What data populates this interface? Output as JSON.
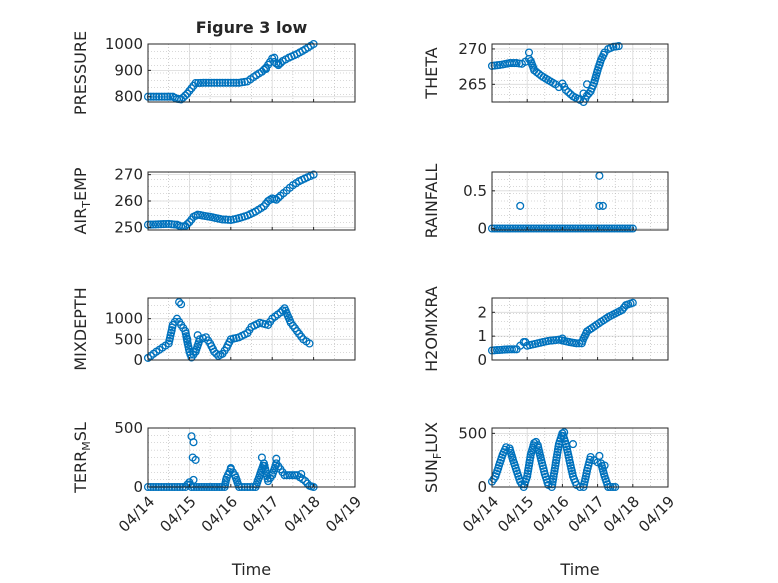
{
  "figure_title": "Figure 3 low",
  "colors": {
    "marker": "#0072BD",
    "axis": "#262626",
    "grid": "#b0b0b0"
  },
  "chart_data": [
    {
      "id": "pressure",
      "type": "scatter",
      "title": "Figure 3 low",
      "ylabel_main": "PRESSURE",
      "ylabel_sub": "",
      "ylabel_tail": "",
      "xlim": [
        0,
        5
      ],
      "ylim": [
        780,
        1000
      ],
      "yticks": [
        800,
        900,
        1000
      ],
      "ytick_labels": [
        "800",
        "900",
        "1000"
      ],
      "xtick_labels": [],
      "trace": [
        [
          0,
          800
        ],
        [
          0.4,
          800
        ],
        [
          0.6,
          800
        ],
        [
          0.7,
          792
        ],
        [
          0.8,
          790
        ],
        [
          0.85,
          797
        ],
        [
          0.95,
          812
        ],
        [
          1.05,
          832
        ],
        [
          1.15,
          852
        ],
        [
          1.4,
          853
        ],
        [
          1.8,
          853
        ],
        [
          2.2,
          853
        ],
        [
          2.4,
          858
        ],
        [
          2.55,
          875
        ],
        [
          2.75,
          895
        ],
        [
          2.85,
          910
        ],
        [
          2.95,
          932
        ],
        [
          3.0,
          945
        ],
        [
          3.05,
          932
        ],
        [
          3.15,
          920
        ],
        [
          3.25,
          935
        ],
        [
          3.4,
          948
        ],
        [
          3.6,
          962
        ],
        [
          3.8,
          980
        ],
        [
          4.0,
          1000
        ]
      ],
      "extra": [
        [
          2.85,
          905
        ],
        [
          3.05,
          948
        ],
        [
          3.15,
          925
        ]
      ]
    },
    {
      "id": "theta",
      "type": "scatter",
      "title": "",
      "ylabel_main": "THETA",
      "ylabel_sub": "",
      "ylabel_tail": "",
      "xlim": [
        0,
        5
      ],
      "ylim": [
        262.5,
        270.7
      ],
      "yticks": [
        265,
        270
      ],
      "ytick_labels": [
        "265",
        "270"
      ],
      "xtick_labels": [],
      "trace": [
        [
          0,
          267.6
        ],
        [
          0.3,
          267.8
        ],
        [
          0.5,
          268.0
        ],
        [
          0.7,
          268.0
        ],
        [
          0.85,
          267.9
        ],
        [
          0.95,
          268.2
        ],
        [
          1.05,
          268.6
        ],
        [
          1.1,
          268.3
        ],
        [
          1.2,
          267.0
        ],
        [
          1.4,
          266.2
        ],
        [
          1.6,
          265.6
        ],
        [
          1.8,
          265.0
        ],
        [
          1.9,
          264.6
        ],
        [
          2.0,
          265.1
        ],
        [
          2.1,
          264.2
        ],
        [
          2.3,
          263.3
        ],
        [
          2.5,
          262.8
        ],
        [
          2.6,
          262.5
        ],
        [
          2.7,
          263.4
        ],
        [
          2.8,
          264.0
        ],
        [
          2.9,
          265.2
        ],
        [
          3.0,
          267.0
        ],
        [
          3.1,
          268.5
        ],
        [
          3.2,
          269.5
        ],
        [
          3.3,
          270.0
        ],
        [
          3.45,
          270.3
        ],
        [
          3.6,
          270.4
        ]
      ],
      "extra": [
        [
          1.05,
          269.5
        ],
        [
          2.7,
          265.0
        ],
        [
          2.6,
          263.7
        ]
      ]
    },
    {
      "id": "air_temp",
      "type": "scatter",
      "title": "",
      "ylabel_main": "AIR",
      "ylabel_sub": "T",
      "ylabel_tail": "EMP",
      "xlim": [
        0,
        5
      ],
      "ylim": [
        249,
        271
      ],
      "yticks": [
        250,
        260,
        270
      ],
      "ytick_labels": [
        "250",
        "260",
        "270"
      ],
      "xtick_labels": [],
      "trace": [
        [
          0,
          251.0
        ],
        [
          0.5,
          251.3
        ],
        [
          0.7,
          251.0
        ],
        [
          0.8,
          250.3
        ],
        [
          0.9,
          250.5
        ],
        [
          1.0,
          252.0
        ],
        [
          1.1,
          254.0
        ],
        [
          1.2,
          254.8
        ],
        [
          1.5,
          254.0
        ],
        [
          1.8,
          253.0
        ],
        [
          2.0,
          252.8
        ],
        [
          2.2,
          253.5
        ],
        [
          2.4,
          254.5
        ],
        [
          2.6,
          256.0
        ],
        [
          2.8,
          258.0
        ],
        [
          2.9,
          260.0
        ],
        [
          3.0,
          261.0
        ],
        [
          3.1,
          260.5
        ],
        [
          3.2,
          262.0
        ],
        [
          3.35,
          264.0
        ],
        [
          3.5,
          266.0
        ],
        [
          3.65,
          267.5
        ],
        [
          3.85,
          269.0
        ],
        [
          4.0,
          270.0
        ]
      ],
      "extra": []
    },
    {
      "id": "rainfall",
      "type": "scatter",
      "title": "",
      "ylabel_main": "RAINFALL",
      "ylabel_sub": "",
      "ylabel_tail": "",
      "xlim": [
        0,
        5
      ],
      "ylim": [
        -0.02,
        0.75
      ],
      "yticks": [
        0,
        0.5
      ],
      "ytick_labels": [
        "0",
        "0.5"
      ],
      "xtick_labels": [],
      "trace": [
        [
          0,
          0
        ],
        [
          4.0,
          0
        ]
      ],
      "extra": [
        [
          0.8,
          0.3
        ],
        [
          3.05,
          0.7
        ],
        [
          3.05,
          0.3
        ],
        [
          3.15,
          0.3
        ]
      ]
    },
    {
      "id": "mixdepth",
      "type": "scatter",
      "title": "",
      "ylabel_main": "MIXDEPTH",
      "ylabel_sub": "",
      "ylabel_tail": "",
      "xlim": [
        0,
        5
      ],
      "ylim": [
        0,
        1500
      ],
      "yticks": [
        0,
        500,
        1000
      ],
      "ytick_labels": [
        "0",
        "500",
        "1000"
      ],
      "xtick_labels": [],
      "trace": [
        [
          0,
          50
        ],
        [
          0.2,
          200
        ],
        [
          0.35,
          300
        ],
        [
          0.5,
          400
        ],
        [
          0.6,
          850
        ],
        [
          0.7,
          1000
        ],
        [
          0.8,
          850
        ],
        [
          0.9,
          700
        ],
        [
          1.0,
          200
        ],
        [
          1.05,
          60
        ],
        [
          1.15,
          200
        ],
        [
          1.25,
          500
        ],
        [
          1.4,
          550
        ],
        [
          1.5,
          400
        ],
        [
          1.6,
          200
        ],
        [
          1.7,
          100
        ],
        [
          1.8,
          150
        ],
        [
          1.9,
          300
        ],
        [
          2.0,
          500
        ],
        [
          2.2,
          550
        ],
        [
          2.4,
          650
        ],
        [
          2.5,
          800
        ],
        [
          2.7,
          900
        ],
        [
          2.9,
          850
        ],
        [
          3.0,
          1000
        ],
        [
          3.2,
          1150
        ],
        [
          3.3,
          1250
        ],
        [
          3.45,
          900
        ],
        [
          3.6,
          700
        ],
        [
          3.75,
          500
        ],
        [
          3.9,
          400
        ]
      ],
      "extra": [
        [
          0.75,
          1400
        ],
        [
          0.8,
          1350
        ],
        [
          0.95,
          500
        ],
        [
          1.1,
          200
        ],
        [
          1.2,
          600
        ]
      ]
    },
    {
      "id": "h2omixra",
      "type": "scatter",
      "title": "",
      "ylabel_main": "H2OMIXRA",
      "ylabel_sub": "",
      "ylabel_tail": "",
      "xlim": [
        0,
        5
      ],
      "ylim": [
        0,
        2.6
      ],
      "yticks": [
        0,
        1,
        2
      ],
      "ytick_labels": [
        "0",
        "1",
        "2"
      ],
      "xtick_labels": [],
      "trace": [
        [
          0,
          0.4
        ],
        [
          0.5,
          0.45
        ],
        [
          0.7,
          0.45
        ],
        [
          0.8,
          0.6
        ],
        [
          0.9,
          0.75
        ],
        [
          1.0,
          0.6
        ],
        [
          1.3,
          0.7
        ],
        [
          1.6,
          0.8
        ],
        [
          1.9,
          0.85
        ],
        [
          2.2,
          0.75
        ],
        [
          2.4,
          0.7
        ],
        [
          2.55,
          0.7
        ],
        [
          2.6,
          0.9
        ],
        [
          2.7,
          1.2
        ],
        [
          2.9,
          1.4
        ],
        [
          3.1,
          1.6
        ],
        [
          3.3,
          1.8
        ],
        [
          3.5,
          1.95
        ],
        [
          3.7,
          2.1
        ],
        [
          3.8,
          2.3
        ],
        [
          4.0,
          2.4
        ]
      ],
      "extra": [
        [
          0.95,
          0.75
        ],
        [
          2.0,
          0.9
        ]
      ]
    },
    {
      "id": "terr_msl",
      "type": "scatter",
      "title": "",
      "ylabel_main": "TERR",
      "ylabel_sub": "M",
      "ylabel_tail": "SL",
      "xlim": [
        0,
        5
      ],
      "ylim": [
        0,
        500
      ],
      "yticks": [
        0,
        500
      ],
      "ytick_labels": [
        "0",
        "500"
      ],
      "xtick_labels": [
        "04/14",
        "04/15",
        "04/16",
        "04/17",
        "04/18",
        "04/19"
      ],
      "xlabel": "Time",
      "trace": [
        [
          0,
          0
        ],
        [
          0.9,
          0
        ],
        [
          1.0,
          40
        ],
        [
          1.05,
          0
        ],
        [
          1.85,
          0
        ],
        [
          1.9,
          80
        ],
        [
          2.0,
          150
        ],
        [
          2.1,
          100
        ],
        [
          2.2,
          0
        ],
        [
          2.6,
          0
        ],
        [
          2.7,
          100
        ],
        [
          2.8,
          200
        ],
        [
          2.9,
          50
        ],
        [
          3.0,
          100
        ],
        [
          3.1,
          200
        ],
        [
          3.2,
          150
        ],
        [
          3.3,
          100
        ],
        [
          3.6,
          100
        ],
        [
          3.8,
          50
        ],
        [
          3.9,
          10
        ],
        [
          4.0,
          0
        ]
      ],
      "extra": [
        [
          1.05,
          430
        ],
        [
          1.1,
          380
        ],
        [
          1.08,
          250
        ],
        [
          1.15,
          230
        ],
        [
          1.1,
          60
        ],
        [
          2.0,
          160
        ],
        [
          2.75,
          250
        ],
        [
          3.1,
          240
        ],
        [
          3.7,
          110
        ]
      ]
    },
    {
      "id": "sun_flux",
      "type": "scatter",
      "title": "",
      "ylabel_main": "SUN",
      "ylabel_sub": "F",
      "ylabel_tail": "LUX",
      "xlim": [
        0,
        5
      ],
      "ylim": [
        0,
        550
      ],
      "yticks": [
        0,
        500
      ],
      "ytick_labels": [
        "0",
        "500"
      ],
      "xtick_labels": [
        "04/14",
        "04/15",
        "04/16",
        "04/17",
        "04/18",
        "04/19"
      ],
      "xlabel": "Time",
      "trace": [
        [
          0,
          50
        ],
        [
          0.1,
          100
        ],
        [
          0.2,
          200
        ],
        [
          0.3,
          300
        ],
        [
          0.4,
          370
        ],
        [
          0.5,
          360
        ],
        [
          0.6,
          250
        ],
        [
          0.7,
          150
        ],
        [
          0.8,
          50
        ],
        [
          0.9,
          0
        ],
        [
          1.0,
          100
        ],
        [
          1.1,
          300
        ],
        [
          1.2,
          410
        ],
        [
          1.3,
          390
        ],
        [
          1.4,
          250
        ],
        [
          1.5,
          120
        ],
        [
          1.6,
          20
        ],
        [
          1.7,
          0
        ],
        [
          1.8,
          200
        ],
        [
          1.9,
          400
        ],
        [
          2.0,
          500
        ],
        [
          2.1,
          400
        ],
        [
          2.2,
          250
        ],
        [
          2.3,
          100
        ],
        [
          2.4,
          20
        ],
        [
          2.5,
          0
        ],
        [
          2.6,
          0
        ],
        [
          2.7,
          150
        ],
        [
          2.8,
          280
        ],
        [
          2.9,
          250
        ],
        [
          3.0,
          230
        ],
        [
          3.1,
          220
        ],
        [
          3.2,
          100
        ],
        [
          3.3,
          0
        ],
        [
          3.5,
          0
        ]
      ],
      "extra": [
        [
          1.25,
          420
        ],
        [
          2.05,
          510
        ],
        [
          2.3,
          400
        ],
        [
          3.05,
          290
        ],
        [
          3.2,
          200
        ]
      ]
    }
  ]
}
